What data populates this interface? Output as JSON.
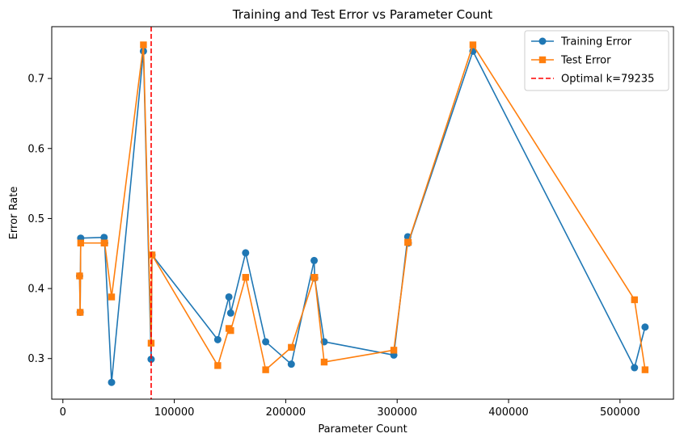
{
  "chart_data": {
    "type": "line",
    "title": "Training and Test Error vs Parameter Count",
    "xlabel": "Parameter Count",
    "ylabel": "Error Rate",
    "xlim": [
      -10000,
      548000
    ],
    "ylim": [
      0.242,
      0.774
    ],
    "xticks": [
      0,
      100000,
      200000,
      300000,
      400000,
      500000
    ],
    "yticks": [
      0.3,
      0.4,
      0.5,
      0.6,
      0.7
    ],
    "xtick_labels": [
      "0",
      "100000",
      "200000",
      "300000",
      "400000",
      "500000"
    ],
    "ytick_labels": [
      "0.3",
      "0.4",
      "0.5",
      "0.6",
      "0.7"
    ],
    "grid": false,
    "legend": "top-right",
    "series": [
      {
        "name": "Training Error",
        "color": "#1f77b4",
        "marker": "circle",
        "x": [
          15000,
          15500,
          16000,
          37000,
          37500,
          43700,
          72300,
          79200,
          80000,
          139000,
          149000,
          150600,
          164000,
          182000,
          205000,
          225500,
          226000,
          234500,
          297000,
          309500,
          310000,
          368000,
          513000,
          522500
        ],
        "y": [
          0.418,
          0.366,
          0.472,
          0.473,
          0.465,
          0.266,
          0.739,
          0.299,
          0.448,
          0.327,
          0.388,
          0.365,
          0.451,
          0.324,
          0.292,
          0.44,
          0.415,
          0.324,
          0.305,
          0.474,
          0.465,
          0.739,
          0.287,
          0.345
        ]
      },
      {
        "name": "Test Error",
        "color": "#ff7f0e",
        "marker": "square",
        "x": [
          15000,
          15500,
          16000,
          37000,
          37500,
          43700,
          72300,
          79200,
          80000,
          139000,
          149000,
          150600,
          164000,
          182000,
          205000,
          225500,
          226000,
          234500,
          297000,
          309500,
          310000,
          368000,
          513000,
          522500
        ],
        "y": [
          0.418,
          0.366,
          0.465,
          0.465,
          0.465,
          0.388,
          0.748,
          0.322,
          0.448,
          0.29,
          0.343,
          0.34,
          0.416,
          0.284,
          0.316,
          0.416,
          0.416,
          0.295,
          0.312,
          0.466,
          0.466,
          0.748,
          0.384,
          0.284
        ]
      }
    ],
    "vline": {
      "name": "Optimal k=79235",
      "x": 79235,
      "color": "#ff0000",
      "style": "dashed"
    }
  }
}
